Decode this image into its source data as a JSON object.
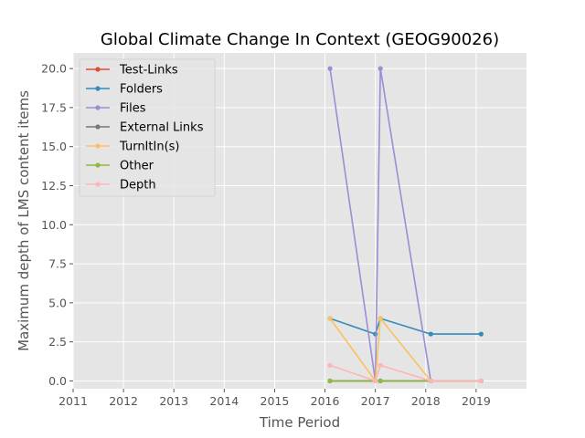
{
  "chart_data": {
    "type": "line",
    "title": "Global Climate Change In Context (GEOG90026)",
    "xlabel": "Time Period",
    "ylabel": "Maximum depth of LMS content items",
    "xlim": [
      2011,
      2020
    ],
    "ylim": [
      -0.5,
      21
    ],
    "x_ticks": [
      "2011",
      "2012",
      "2013",
      "2014",
      "2015",
      "2016",
      "2017",
      "2018",
      "2019"
    ],
    "y_ticks": [
      "0.0",
      "2.5",
      "5.0",
      "7.5",
      "10.0",
      "12.5",
      "15.0",
      "17.5",
      "20.0"
    ],
    "grid": true,
    "legend_position": "top-left",
    "series": [
      {
        "name": "Test-Links",
        "color": "#E24A33",
        "x": [
          2016.1,
          2017.0,
          2017.1,
          2018.1,
          2019.1
        ],
        "y": [
          0,
          0,
          0,
          0,
          0
        ]
      },
      {
        "name": "Folders",
        "color": "#348ABD",
        "x": [
          2016.1,
          2017.0,
          2017.1,
          2018.1,
          2019.1
        ],
        "y": [
          4,
          3,
          4,
          3,
          3
        ]
      },
      {
        "name": "Files",
        "color": "#988ED5",
        "x": [
          2016.1,
          2017.0,
          2017.1,
          2018.1,
          2019.1
        ],
        "y": [
          20,
          0,
          20,
          0,
          0
        ]
      },
      {
        "name": "External Links",
        "color": "#777777",
        "x": [
          2016.1,
          2017.0,
          2017.1,
          2018.1,
          2019.1
        ],
        "y": [
          0,
          0,
          0,
          0,
          0
        ]
      },
      {
        "name": "TurnItIn(s)",
        "color": "#FBC15E",
        "x": [
          2016.1,
          2017.0,
          2017.1,
          2018.1,
          2019.1
        ],
        "y": [
          4,
          0,
          4,
          0,
          0
        ]
      },
      {
        "name": "Other",
        "color": "#8EBA42",
        "x": [
          2016.1,
          2017.0,
          2017.1,
          2018.1,
          2019.1
        ],
        "y": [
          0,
          0,
          0,
          0,
          0
        ]
      },
      {
        "name": "Depth",
        "color": "#FFB5B8",
        "x": [
          2016.1,
          2017.0,
          2017.1,
          2018.1,
          2019.1
        ],
        "y": [
          1,
          0,
          1,
          0,
          0
        ]
      }
    ]
  }
}
